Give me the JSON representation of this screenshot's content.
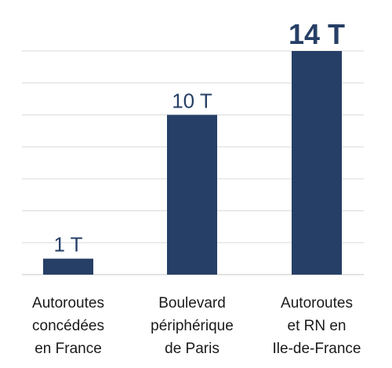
{
  "chart_data": {
    "type": "bar",
    "categories": [
      [
        "Autoroutes",
        "concédées",
        "en France"
      ],
      [
        "Boulevard",
        "périphérique",
        "de Paris"
      ],
      [
        "Autoroutes",
        "et RN en",
        "Ile-de-France"
      ]
    ],
    "values": [
      1,
      10,
      14
    ],
    "data_labels": [
      "1 T",
      "10 T",
      "14 T"
    ],
    "emphasized_label_index": 2,
    "ylim": [
      0,
      14
    ],
    "grid": true,
    "bar_color": "#263f66",
    "label_color": "#263f66",
    "grid_color": "#d9d9d9"
  }
}
